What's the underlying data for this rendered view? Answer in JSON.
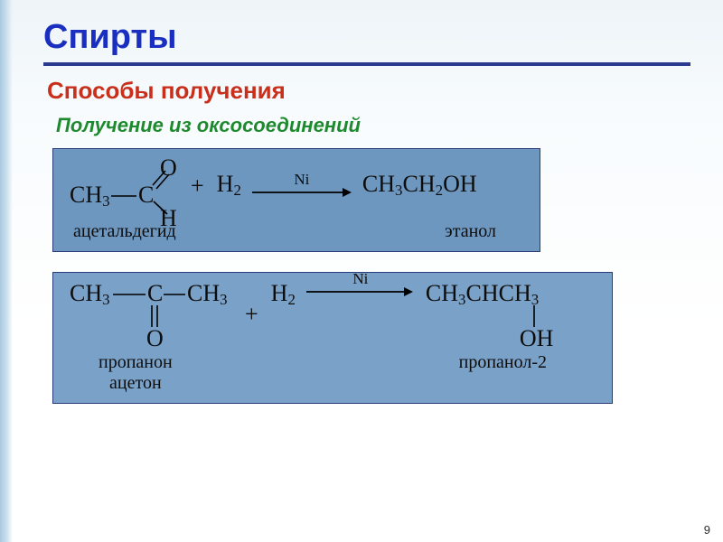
{
  "colors": {
    "title": "#1a2fbf",
    "subtitle": "#c9301c",
    "subsub": "#1e8a2e",
    "hr": "#2a3a8f",
    "box_bg_1": "#6e97c0",
    "box_bg_2": "#7aa1c7",
    "text_dark": "#0d0d0d",
    "arrow": "#000000"
  },
  "slide": {
    "title": "Спирты",
    "subtitle": "Способы получения",
    "subsub": "Получение из оксосоединений",
    "number": "9"
  },
  "rxn1": {
    "reagent_left_ch3": "CH",
    "reagent_left_ch3_sub": "3",
    "reagent_left_C": "C",
    "reagent_left_O": "O",
    "reagent_left_H": "H",
    "plus": "+",
    "h2": "H",
    "h2_sub": "2",
    "catalyst": "Ni",
    "product": "CH",
    "product_tail": "OH",
    "product_sub1": "3",
    "product_mid": "CH",
    "product_sub2": "2",
    "label_left": "ацетальдегид",
    "label_right": "этанол"
  },
  "rxn2": {
    "ch3": "CH",
    "ch3_sub": "3",
    "C": "C",
    "O": "O",
    "plus": "+",
    "h2": "H",
    "h2_sub": "2",
    "catalyst": "Ni",
    "prod_row": "CH",
    "prod_mid": "CHCH",
    "prod_oh": "OH",
    "label_left_1": "пропанон",
    "label_left_2": "ацетон",
    "label_right": "пропанол-2"
  },
  "geom": {
    "arrow_width_1": 110,
    "arrow_width_2": 120
  }
}
